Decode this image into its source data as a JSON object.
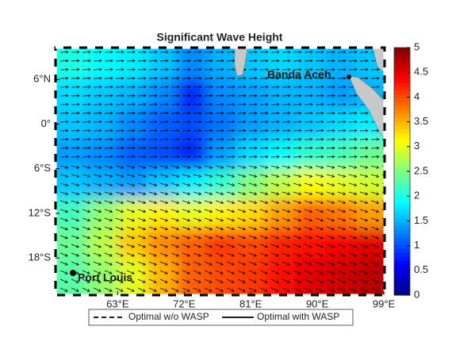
{
  "chart_data": {
    "type": "heatmap",
    "title": "Significant Wave Height",
    "colormap": "jet",
    "xlim": [
      54.6,
      99.1
    ],
    "ylim": [
      -23,
      10.3
    ],
    "xticks": [
      {
        "value": 63,
        "label": "63°E"
      },
      {
        "value": 72,
        "label": "72°E"
      },
      {
        "value": 81,
        "label": "81°E"
      },
      {
        "value": 90,
        "label": "90°E"
      },
      {
        "value": 99,
        "label": "99°E"
      }
    ],
    "yticks": [
      {
        "value": 6,
        "label": "6°N"
      },
      {
        "value": 0,
        "label": "0°"
      },
      {
        "value": -6,
        "label": "6°S"
      },
      {
        "value": -12,
        "label": "12°S"
      },
      {
        "value": -18,
        "label": "18°S"
      }
    ],
    "clim": [
      0,
      5
    ],
    "cticks": [
      0,
      0.5,
      1,
      1.5,
      2,
      2.5,
      3,
      3.5,
      4,
      4.5,
      5
    ],
    "x": [
      57,
      61,
      65,
      69,
      73,
      77,
      81,
      85,
      89,
      93,
      97
    ],
    "y": [
      8,
      4,
      0,
      -4,
      -8,
      -12,
      -16,
      -20
    ],
    "z": [
      [
        2.0,
        1.9,
        1.8,
        1.6,
        1.3,
        1.5,
        1.6,
        1.7,
        1.6,
        1.5,
        1.6
      ],
      [
        1.7,
        1.6,
        1.5,
        1.3,
        0.8,
        1.3,
        1.4,
        1.5,
        1.5,
        1.4,
        1.5
      ],
      [
        1.6,
        1.5,
        1.3,
        1.1,
        1.0,
        1.2,
        1.4,
        1.5,
        1.6,
        1.7,
        1.8
      ],
      [
        1.4,
        1.3,
        1.1,
        1.0,
        0.8,
        1.4,
        1.7,
        1.9,
        2.1,
        2.2,
        2.4
      ],
      [
        1.6,
        1.5,
        1.4,
        1.6,
        1.8,
        2.1,
        2.5,
        2.8,
        3.1,
        3.0,
        2.9
      ],
      [
        2.2,
        2.6,
        3.0,
        3.2,
        3.0,
        3.2,
        3.3,
        3.6,
        3.9,
        3.8,
        3.6
      ],
      [
        2.4,
        2.8,
        3.4,
        3.7,
        3.9,
        4.1,
        4.0,
        4.2,
        4.3,
        4.4,
        4.5
      ],
      [
        2.3,
        2.6,
        3.0,
        3.5,
        3.9,
        4.0,
        4.1,
        4.3,
        4.5,
        4.6,
        4.7
      ]
    ],
    "annotations": [
      "Banda Aceh",
      "Port Louis"
    ],
    "legend": [
      "Optimal w/o WASP",
      "Optimal with WASP"
    ]
  }
}
